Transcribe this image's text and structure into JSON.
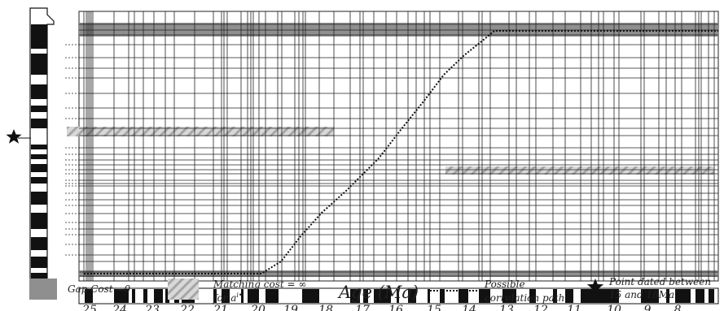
{
  "axis": {
    "title": "Age (Ma)",
    "ticks": [
      "25",
      "24",
      "23",
      "22",
      "21",
      "20",
      "19",
      "18",
      "17",
      "16",
      "15",
      "14",
      "13",
      "12",
      "11",
      "10",
      "9",
      "8"
    ]
  },
  "legend": {
    "gap_cost": "Gap Cost =0",
    "matching_cost_line1": "Matching cost = ∞",
    "matching_cost_line2": "for a",
    "matching_cost_sup": "i•",
    "path_line1": "Possible",
    "path_line2": "correlation path",
    "star_line1": "Point dated between",
    "star_line2": "15 and 18Ma"
  },
  "colors": {
    "gap_band": "#8f8f8f",
    "hatch_light": "#d2d2d2",
    "hatch_dark": "#a8a8a8",
    "grid": "#222222",
    "polarity_black": "#111111"
  },
  "icons": {
    "star": "star-icon",
    "hatch": "hatch-swatch-icon"
  }
}
